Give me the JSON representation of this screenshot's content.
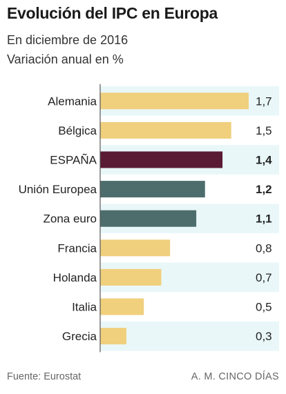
{
  "header": {
    "title": "Evolución del IPC en Europa",
    "subtitle_1": "En diciembre de 2016",
    "subtitle_2": "Variación anual en %"
  },
  "footer": {
    "source": "Fuente: Eurostat",
    "credit": "A. M. CINCO DÍAS"
  },
  "colors": {
    "default_bar": "#f0cf7d",
    "spain_bar": "#5a1a33",
    "eu_bar": "#4d6d6c",
    "band": "#e9f7f9",
    "axis": "#555555"
  },
  "chart_data": {
    "type": "bar",
    "orientation": "horizontal",
    "title": "Evolución del IPC en Europa",
    "subtitle": "En diciembre de 2016 · Variación anual en %",
    "categories": [
      "Alemania",
      "Bélgica",
      "ESPAÑA",
      "Unión Europea",
      "Zona euro",
      "Francia",
      "Holanda",
      "Italia",
      "Grecia"
    ],
    "values": [
      1.7,
      1.5,
      1.4,
      1.2,
      1.1,
      0.8,
      0.7,
      0.5,
      0.3
    ],
    "value_labels": [
      "1,7",
      "1,5",
      "1,4",
      "1,2",
      "1,1",
      "0,8",
      "0,7",
      "0,5",
      "0,3"
    ],
    "bold_labels": [
      false,
      false,
      true,
      true,
      true,
      false,
      false,
      false,
      false
    ],
    "bar_colors": [
      "default",
      "default",
      "spain",
      "eu",
      "eu",
      "default",
      "default",
      "default",
      "default"
    ],
    "xlim": [
      0,
      1.7
    ],
    "grid": false
  }
}
